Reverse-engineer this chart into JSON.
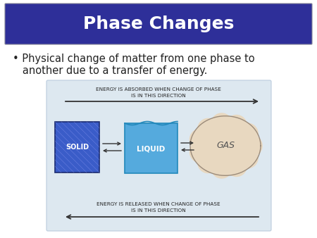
{
  "title": "Phase Changes",
  "title_bg_color": "#2E2F99",
  "title_text_color": "#FFFFFF",
  "slide_bg_color": "#FFFFFF",
  "bullet_line1": "• Physical change of matter from one phase to",
  "bullet_line2": "   another due to a transfer of energy.",
  "diagram_bg_color": "#DDE8F0",
  "solid_color_top": "#3A5CC8",
  "solid_color_bot": "#1A3088",
  "liquid_color": "#55AADD",
  "liquid_dark": "#2288BB",
  "gas_color": "#E8D8C0",
  "gas_edge": "#9B8B7A",
  "label_solid": "SOLID",
  "label_liquid": "LIQUID",
  "label_gas": "GAS",
  "top_text1": "ENERGY IS ABSORBED WHEN CHANGE OF PHASE",
  "top_text2": "IS IN THIS DIRECTION",
  "bot_text1": "ENERGY IS RELEASED WHEN CHANGE OF PHASE",
  "bot_text2": "IS IN THIS DIRECTION",
  "arrow_color": "#333333",
  "text_color": "#222222",
  "figw": 4.5,
  "figh": 3.38,
  "dpi": 100
}
